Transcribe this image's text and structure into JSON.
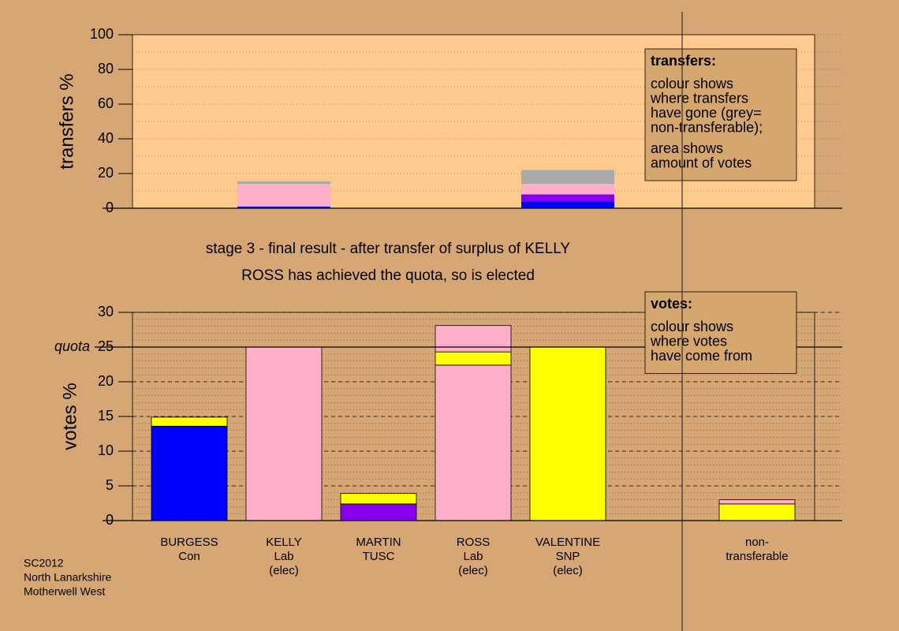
{
  "chart_data": [
    {
      "type": "stacked_bar",
      "ylabel": "transfers %",
      "categories": [
        [
          "BURGESS",
          "Con"
        ],
        [
          "KELLY",
          "Lab",
          "(elec)"
        ],
        [
          "MARTIN",
          "TUSC"
        ],
        [
          "ROSS",
          "Lab",
          "(elec)"
        ],
        [
          "VALENTINE",
          "SNP",
          "(elec)"
        ],
        null,
        [
          "non-",
          "transferable"
        ]
      ],
      "series": [
        {
          "color": "#0000ff",
          "values": [
            null,
            1,
            null,
            null,
            4,
            null,
            null
          ]
        },
        {
          "color": "#8800ee",
          "values": [
            null,
            null,
            null,
            null,
            4,
            null,
            null
          ]
        },
        {
          "color": "#ffb0c8",
          "values": [
            null,
            13,
            null,
            null,
            6,
            null,
            null
          ]
        },
        {
          "color": "#aaaaaa",
          "values": [
            null,
            1.5,
            null,
            null,
            8,
            null,
            null
          ]
        }
      ],
      "ylim": [
        0,
        100
      ],
      "yticks": [
        0,
        20,
        40,
        60,
        80,
        100
      ],
      "grid_yticks": [
        0,
        10,
        20,
        30,
        40,
        50,
        60,
        70,
        80,
        90,
        100
      ],
      "plot_color": "#ffca8e",
      "note": {
        "title": "transfers:",
        "paragraphs": [
          [
            "colour shows",
            "where transfers",
            "have gone (grey=",
            "non-transferable);"
          ],
          [
            "area shows",
            "amount of votes"
          ]
        ]
      }
    },
    {
      "type": "stacked_bar",
      "ylabel": "votes %",
      "title": "stage 3 - final result - after transfer of surplus of KELLY",
      "subtitle": "ROSS has achieved the quota, so is elected",
      "categories": [
        [
          "BURGESS",
          "Con"
        ],
        [
          "KELLY",
          "Lab",
          "(elec)"
        ],
        [
          "MARTIN",
          "TUSC"
        ],
        [
          "ROSS",
          "Lab",
          "(elec)"
        ],
        [
          "VALENTINE",
          "SNP",
          "(elec)"
        ],
        null,
        [
          "non-",
          "transferable"
        ]
      ],
      "series": [
        {
          "color": "#0000ff",
          "values": [
            13.6,
            null,
            null,
            null,
            null,
            null,
            null
          ]
        },
        {
          "color": "#8800ee",
          "values": [
            null,
            null,
            2.4,
            null,
            null,
            null,
            null
          ]
        },
        {
          "color": "#ffb0c8",
          "values": [
            null,
            25,
            null,
            22.4,
            null,
            null,
            null
          ]
        },
        {
          "color": "#ffff00",
          "values": [
            1.3,
            null,
            1.5,
            1.9,
            25,
            null,
            2.4
          ]
        },
        {
          "color": "#ffb0c8",
          "values": [
            null,
            null,
            null,
            3.8,
            null,
            null,
            0.6
          ]
        }
      ],
      "ylim": [
        0,
        30
      ],
      "yticks": [
        0,
        5,
        10,
        15,
        20,
        25,
        30
      ],
      "grid_yticks": [
        0,
        1,
        2,
        3,
        4,
        5,
        6,
        7,
        8,
        9,
        10,
        11,
        12,
        13,
        14,
        15,
        16,
        17,
        18,
        19,
        20,
        21,
        22,
        23,
        24,
        25,
        26,
        27,
        28,
        29,
        30
      ],
      "reference_line": {
        "value": 25,
        "label": "quota"
      },
      "note": {
        "title": "votes:",
        "paragraphs": [
          [
            "colour shows",
            "where votes",
            "have come from"
          ]
        ]
      }
    }
  ],
  "footer": [
    "SC2012",
    "North Lanarkshire",
    "Motherwell West"
  ]
}
